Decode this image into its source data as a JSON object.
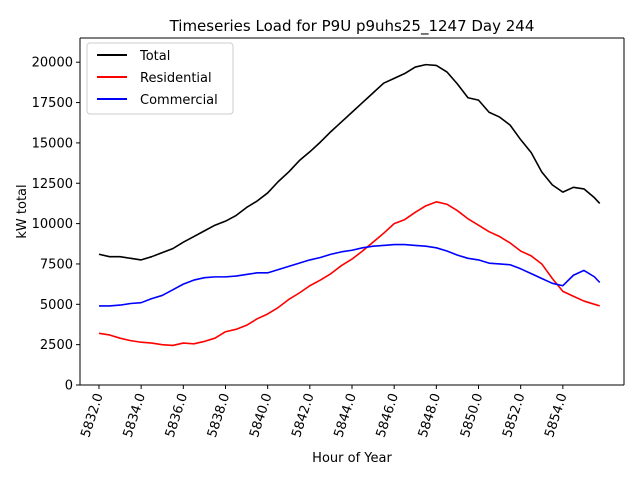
{
  "chart_data": {
    "type": "line",
    "title": "Timeseries Load for P9U p9uhs25_1247  Day 244",
    "xlabel": "Hour of Year",
    "ylabel": "kW total",
    "xlim": [
      5831.1,
      5856.9
    ],
    "ylim": [
      0,
      21500
    ],
    "x_ticks": [
      5832.0,
      5834.0,
      5836.0,
      5838.0,
      5840.0,
      5842.0,
      5844.0,
      5846.0,
      5848.0,
      5850.0,
      5852.0,
      5854.0
    ],
    "x_tick_labels": [
      "5832.0",
      "5834.0",
      "5836.0",
      "5838.0",
      "5840.0",
      "5842.0",
      "5844.0",
      "5846.0",
      "5848.0",
      "5850.0",
      "5852.0",
      "5854.0"
    ],
    "y_ticks": [
      0,
      2500,
      5000,
      7500,
      10000,
      12500,
      15000,
      17500,
      20000
    ],
    "y_tick_labels": [
      "0",
      "2500",
      "5000",
      "7500",
      "10000",
      "12500",
      "15000",
      "17500",
      "20000"
    ],
    "legend_position": "upper-left",
    "series": [
      {
        "name": "Total",
        "color": "#000000",
        "x": [
          5832.0,
          5832.5,
          5833.0,
          5833.5,
          5834.0,
          5834.5,
          5835.0,
          5835.5,
          5836.0,
          5836.5,
          5837.0,
          5837.5,
          5838.0,
          5838.5,
          5839.0,
          5839.5,
          5840.0,
          5840.5,
          5841.0,
          5841.5,
          5842.0,
          5842.5,
          5843.0,
          5843.5,
          5844.0,
          5844.5,
          5845.0,
          5845.5,
          5846.0,
          5846.5,
          5847.0,
          5847.5,
          5848.0,
          5848.5,
          5849.0,
          5849.5,
          5850.0,
          5850.5,
          5851.0,
          5851.5,
          5852.0,
          5852.5,
          5853.0,
          5853.5,
          5854.0,
          5854.5,
          5855.0,
          5855.5,
          5855.75
        ],
        "values": [
          8100,
          7950,
          7950,
          7850,
          7750,
          7950,
          8200,
          8450,
          8850,
          9200,
          9550,
          9900,
          10150,
          10500,
          11000,
          11400,
          11900,
          12600,
          13200,
          13900,
          14450,
          15050,
          15700,
          16300,
          16900,
          17500,
          18100,
          18700,
          19000,
          19300,
          19700,
          19850,
          19800,
          19400,
          18650,
          17800,
          17650,
          16900,
          16600,
          16100,
          15200,
          14400,
          13200,
          12400,
          11950,
          12250,
          12150,
          11600,
          11250
        ]
      },
      {
        "name": "Residential",
        "color": "#ff0000",
        "x": [
          5832.0,
          5832.5,
          5833.0,
          5833.5,
          5834.0,
          5834.5,
          5835.0,
          5835.5,
          5836.0,
          5836.5,
          5837.0,
          5837.5,
          5838.0,
          5838.5,
          5839.0,
          5839.5,
          5840.0,
          5840.5,
          5841.0,
          5841.5,
          5842.0,
          5842.5,
          5843.0,
          5843.5,
          5844.0,
          5844.5,
          5845.0,
          5845.5,
          5846.0,
          5846.5,
          5847.0,
          5847.5,
          5848.0,
          5848.5,
          5849.0,
          5849.5,
          5850.0,
          5850.5,
          5851.0,
          5851.5,
          5852.0,
          5852.5,
          5853.0,
          5853.5,
          5854.0,
          5854.5,
          5855.0,
          5855.5,
          5855.75
        ],
        "values": [
          3200,
          3100,
          2900,
          2750,
          2650,
          2600,
          2500,
          2450,
          2600,
          2550,
          2700,
          2900,
          3300,
          3450,
          3700,
          4100,
          4400,
          4800,
          5300,
          5700,
          6150,
          6500,
          6900,
          7400,
          7800,
          8300,
          8850,
          9400,
          10000,
          10250,
          10700,
          11100,
          11350,
          11200,
          10800,
          10300,
          9900,
          9500,
          9200,
          8800,
          8300,
          8000,
          7500,
          6600,
          5800,
          5500,
          5200,
          5000,
          4900
        ]
      },
      {
        "name": "Commercial",
        "color": "#0000ff",
        "x": [
          5832.0,
          5832.5,
          5833.0,
          5833.5,
          5834.0,
          5834.5,
          5835.0,
          5835.5,
          5836.0,
          5836.5,
          5837.0,
          5837.5,
          5838.0,
          5838.5,
          5839.0,
          5839.5,
          5840.0,
          5840.5,
          5841.0,
          5841.5,
          5842.0,
          5842.5,
          5843.0,
          5843.5,
          5844.0,
          5844.5,
          5845.0,
          5845.5,
          5846.0,
          5846.5,
          5847.0,
          5847.5,
          5848.0,
          5848.5,
          5849.0,
          5849.5,
          5850.0,
          5850.5,
          5851.0,
          5851.5,
          5852.0,
          5852.5,
          5853.0,
          5853.5,
          5854.0,
          5854.5,
          5855.0,
          5855.5,
          5855.75
        ],
        "values": [
          4900,
          4900,
          4950,
          5050,
          5100,
          5350,
          5550,
          5900,
          6250,
          6500,
          6650,
          6700,
          6700,
          6750,
          6850,
          6950,
          6950,
          7150,
          7350,
          7550,
          7750,
          7900,
          8100,
          8250,
          8350,
          8500,
          8600,
          8650,
          8700,
          8700,
          8650,
          8600,
          8500,
          8300,
          8050,
          7850,
          7750,
          7550,
          7500,
          7450,
          7200,
          6900,
          6600,
          6300,
          6150,
          6800,
          7100,
          6700,
          6350
        ]
      }
    ]
  }
}
